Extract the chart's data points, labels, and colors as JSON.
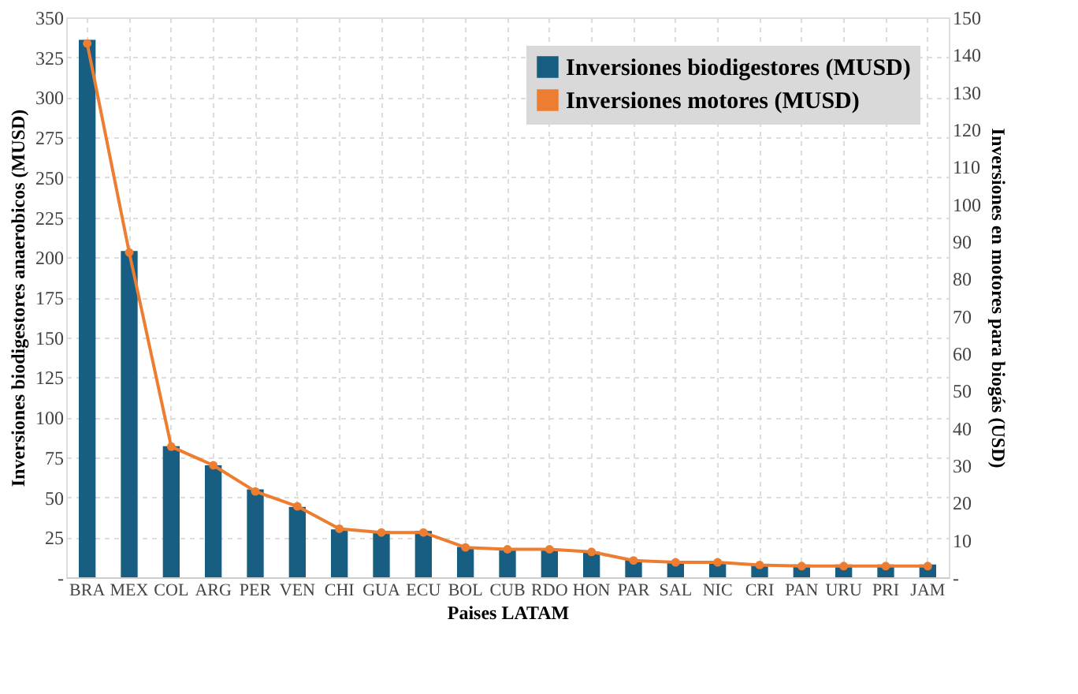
{
  "chart_data": {
    "type": "bar",
    "xlabel": "Paises LATAM",
    "ylabel": "Inversiones biodigestores anaerobicos (MUSD)",
    "y2label": "Inversiones en motores para biogás (USD)",
    "categories": [
      "BRA",
      "MEX",
      "COL",
      "ARG",
      "PER",
      "VEN",
      "CHI",
      "GUA",
      "ECU",
      "BOL",
      "CUB",
      "RDO",
      "HON",
      "PAR",
      "SAL",
      "NIC",
      "CRI",
      "PAN",
      "URU",
      "PRI",
      "JAM"
    ],
    "series": [
      {
        "name": "Inversiones biodigestores (MUSD)",
        "color": "#175e82",
        "values": [
          336,
          204,
          82,
          70,
          55,
          44,
          30,
          29,
          29,
          19,
          17,
          17,
          16,
          11,
          9,
          9,
          8,
          8,
          8,
          8,
          8
        ]
      },
      {
        "name": "Inversiones motores (MUSD)",
        "type": "line",
        "axis": "y2",
        "color": "#ed7d31",
        "marker": "circle",
        "values": [
          143,
          87,
          35,
          30,
          23,
          19,
          13,
          12,
          12,
          8,
          7.5,
          7.5,
          6.8,
          4.5,
          4,
          4,
          3.3,
          3,
          3,
          3,
          3
        ]
      }
    ],
    "ylim": [
      0,
      350
    ],
    "yticks": [
      {
        "value": 0,
        "label": "-"
      },
      25,
      50,
      75,
      100,
      125,
      150,
      175,
      200,
      225,
      250,
      275,
      300,
      325,
      350
    ],
    "y2lim": [
      0,
      150
    ],
    "y2ticks": [
      {
        "value": 0,
        "label": "-"
      },
      10,
      20,
      30,
      40,
      50,
      60,
      70,
      80,
      90,
      100,
      110,
      120,
      130,
      140,
      150
    ],
    "grid": true,
    "legend": "top right"
  }
}
